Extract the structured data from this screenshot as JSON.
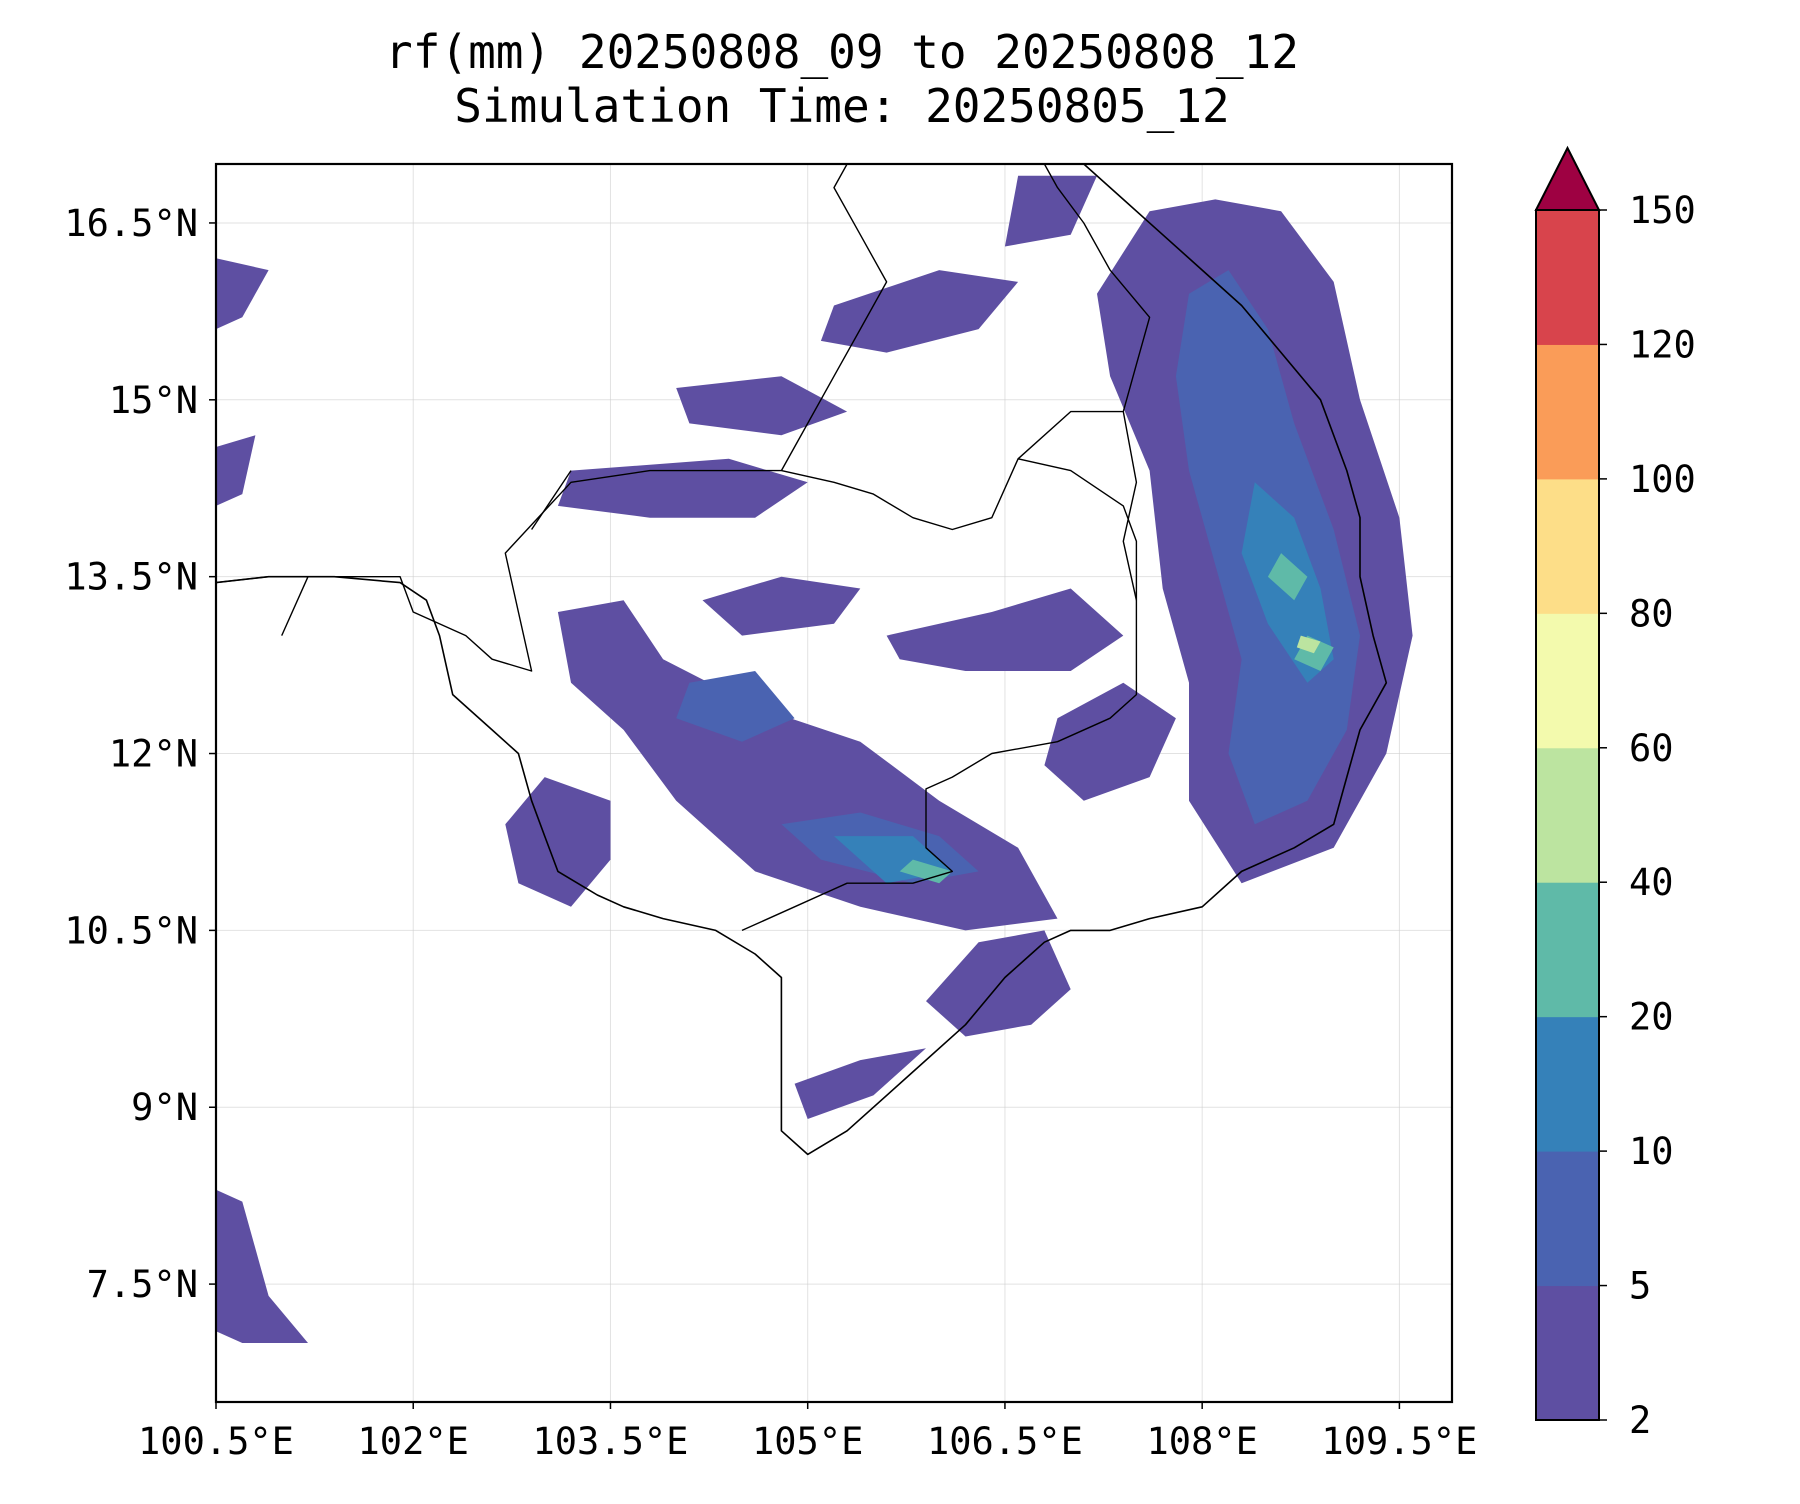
{
  "title": {
    "line1": "rf(mm) 20250808_09 to 20250808_12",
    "line2": "Simulation Time: 20250805_12"
  },
  "map": {
    "lon_range": [
      100.5,
      109.9
    ],
    "lat_range": [
      6.5,
      17.0
    ],
    "x_ticks": [
      {
        "value": 100.5,
        "label": "100.5°E"
      },
      {
        "value": 102.0,
        "label": "102°E"
      },
      {
        "value": 103.5,
        "label": "103.5°E"
      },
      {
        "value": 105.0,
        "label": "105°E"
      },
      {
        "value": 106.5,
        "label": "106.5°E"
      },
      {
        "value": 108.0,
        "label": "108°E"
      },
      {
        "value": 109.5,
        "label": "109.5°E"
      }
    ],
    "y_ticks": [
      {
        "value": 16.5,
        "label": "16.5°N"
      },
      {
        "value": 15.0,
        "label": "15°N"
      },
      {
        "value": 13.5,
        "label": "13.5°N"
      },
      {
        "value": 12.0,
        "label": "12°N"
      },
      {
        "value": 10.5,
        "label": "10.5°N"
      },
      {
        "value": 9.0,
        "label": "9°N"
      },
      {
        "value": 7.5,
        "label": "7.5°N"
      }
    ],
    "grid": true
  },
  "colorbar": {
    "levels": [
      "2",
      "5",
      "10",
      "20",
      "40",
      "60",
      "80",
      "100",
      "120",
      "150"
    ],
    "colors": [
      "#5e4fa2",
      "#4a63b1",
      "#3581b9",
      "#5fbaa8",
      "#bce4a0",
      "#f3faad",
      "#fdde88",
      "#fa9c58",
      "#d8444c"
    ],
    "extend_color": "#9e0142",
    "extend": "max"
  },
  "rain_patches": [
    {
      "level": 0,
      "points": [
        [
          108.6,
          16.6
        ],
        [
          109.0,
          16.0
        ],
        [
          109.2,
          15.0
        ],
        [
          109.5,
          14.0
        ],
        [
          109.6,
          13.0
        ],
        [
          109.4,
          12.0
        ],
        [
          109.0,
          11.2
        ],
        [
          108.3,
          10.9
        ],
        [
          107.9,
          11.6
        ],
        [
          107.9,
          12.6
        ],
        [
          107.7,
          13.4
        ],
        [
          107.6,
          14.4
        ],
        [
          107.3,
          15.2
        ],
        [
          107.2,
          15.9
        ],
        [
          107.6,
          16.6
        ],
        [
          108.1,
          16.7
        ]
      ]
    },
    {
      "level": 0,
      "points": [
        [
          103.2,
          14.4
        ],
        [
          104.4,
          14.5
        ],
        [
          105.0,
          14.3
        ],
        [
          104.6,
          14.0
        ],
        [
          103.8,
          14.0
        ],
        [
          103.1,
          14.1
        ]
      ]
    },
    {
      "level": 0,
      "points": [
        [
          103.1,
          13.2
        ],
        [
          103.6,
          13.3
        ],
        [
          103.9,
          12.8
        ],
        [
          104.6,
          12.4
        ],
        [
          105.4,
          12.1
        ],
        [
          106.0,
          11.6
        ],
        [
          106.6,
          11.2
        ],
        [
          106.9,
          10.6
        ],
        [
          106.2,
          10.5
        ],
        [
          105.4,
          10.7
        ],
        [
          104.6,
          11.0
        ],
        [
          104.0,
          11.6
        ],
        [
          103.6,
          12.2
        ],
        [
          103.2,
          12.6
        ]
      ]
    },
    {
      "level": 0,
      "points": [
        [
          103.0,
          11.8
        ],
        [
          103.5,
          11.6
        ],
        [
          103.5,
          11.1
        ],
        [
          103.2,
          10.7
        ],
        [
          102.8,
          10.9
        ],
        [
          102.7,
          11.4
        ]
      ]
    },
    {
      "level": 0,
      "points": [
        [
          105.6,
          13.0
        ],
        [
          106.4,
          13.2
        ],
        [
          107.0,
          13.4
        ],
        [
          107.4,
          13.0
        ],
        [
          107.0,
          12.7
        ],
        [
          106.2,
          12.7
        ],
        [
          105.7,
          12.8
        ]
      ]
    },
    {
      "level": 0,
      "points": [
        [
          104.2,
          13.3
        ],
        [
          104.8,
          13.5
        ],
        [
          105.4,
          13.4
        ],
        [
          105.2,
          13.1
        ],
        [
          104.5,
          13.0
        ]
      ]
    },
    {
      "level": 0,
      "points": [
        [
          106.9,
          12.3
        ],
        [
          107.4,
          12.6
        ],
        [
          107.8,
          12.3
        ],
        [
          107.6,
          11.8
        ],
        [
          107.1,
          11.6
        ],
        [
          106.8,
          11.9
        ]
      ]
    },
    {
      "level": 0,
      "points": [
        [
          106.3,
          10.4
        ],
        [
          106.8,
          10.5
        ],
        [
          107.0,
          10.0
        ],
        [
          106.7,
          9.7
        ],
        [
          106.2,
          9.6
        ],
        [
          105.9,
          9.9
        ]
      ]
    },
    {
      "level": 0,
      "points": [
        [
          104.9,
          9.2
        ],
        [
          105.4,
          9.4
        ],
        [
          105.9,
          9.5
        ],
        [
          105.5,
          9.1
        ],
        [
          105.0,
          8.9
        ]
      ]
    },
    {
      "level": 0,
      "points": [
        [
          105.2,
          15.8
        ],
        [
          106.0,
          16.1
        ],
        [
          106.6,
          16.0
        ],
        [
          106.3,
          15.6
        ],
        [
          105.6,
          15.4
        ],
        [
          105.1,
          15.5
        ]
      ]
    },
    {
      "level": 0,
      "points": [
        [
          106.6,
          16.9
        ],
        [
          107.2,
          16.9
        ],
        [
          107.0,
          16.4
        ],
        [
          106.5,
          16.3
        ]
      ]
    },
    {
      "level": 0,
      "points": [
        [
          104.0,
          15.1
        ],
        [
          104.8,
          15.2
        ],
        [
          105.3,
          14.9
        ],
        [
          104.8,
          14.7
        ],
        [
          104.1,
          14.8
        ]
      ]
    },
    {
      "level": 0,
      "points": [
        [
          100.5,
          16.2
        ],
        [
          100.9,
          16.1
        ],
        [
          100.7,
          15.7
        ],
        [
          100.5,
          15.6
        ]
      ]
    },
    {
      "level": 0,
      "points": [
        [
          100.5,
          14.6
        ],
        [
          100.8,
          14.7
        ],
        [
          100.7,
          14.2
        ],
        [
          100.5,
          14.1
        ]
      ]
    },
    {
      "level": 0,
      "points": [
        [
          100.5,
          8.3
        ],
        [
          100.7,
          8.2
        ],
        [
          100.9,
          7.4
        ],
        [
          101.2,
          7.0
        ],
        [
          100.7,
          7.0
        ],
        [
          100.5,
          7.1
        ]
      ]
    },
    {
      "level": 1,
      "points": [
        [
          108.2,
          16.1
        ],
        [
          108.5,
          15.6
        ],
        [
          108.7,
          14.8
        ],
        [
          109.0,
          13.9
        ],
        [
          109.2,
          13.0
        ],
        [
          109.1,
          12.2
        ],
        [
          108.8,
          11.6
        ],
        [
          108.4,
          11.4
        ],
        [
          108.2,
          12.0
        ],
        [
          108.3,
          12.8
        ],
        [
          108.1,
          13.6
        ],
        [
          107.9,
          14.4
        ],
        [
          107.8,
          15.2
        ],
        [
          107.9,
          15.9
        ]
      ]
    },
    {
      "level": 1,
      "points": [
        [
          104.8,
          11.4
        ],
        [
          105.4,
          11.5
        ],
        [
          106.0,
          11.3
        ],
        [
          106.3,
          11.0
        ],
        [
          105.8,
          10.9
        ],
        [
          105.1,
          11.1
        ]
      ]
    },
    {
      "level": 1,
      "points": [
        [
          104.1,
          12.6
        ],
        [
          104.6,
          12.7
        ],
        [
          104.9,
          12.3
        ],
        [
          104.5,
          12.1
        ],
        [
          104.0,
          12.3
        ]
      ]
    },
    {
      "level": 2,
      "points": [
        [
          108.4,
          14.3
        ],
        [
          108.7,
          14.0
        ],
        [
          108.9,
          13.4
        ],
        [
          109.0,
          12.8
        ],
        [
          108.8,
          12.6
        ],
        [
          108.5,
          13.1
        ],
        [
          108.3,
          13.7
        ]
      ]
    },
    {
      "level": 2,
      "points": [
        [
          105.2,
          11.3
        ],
        [
          105.8,
          11.3
        ],
        [
          106.1,
          11.0
        ],
        [
          105.6,
          10.9
        ]
      ]
    },
    {
      "level": 3,
      "points": [
        [
          108.6,
          13.7
        ],
        [
          108.8,
          13.5
        ],
        [
          108.7,
          13.3
        ],
        [
          108.5,
          13.5
        ]
      ]
    },
    {
      "level": 3,
      "points": [
        [
          108.8,
          13.0
        ],
        [
          109.0,
          12.9
        ],
        [
          108.9,
          12.7
        ],
        [
          108.7,
          12.8
        ]
      ]
    },
    {
      "level": 3,
      "points": [
        [
          105.8,
          11.1
        ],
        [
          106.1,
          11.0
        ],
        [
          106.0,
          10.9
        ],
        [
          105.7,
          11.0
        ]
      ]
    },
    {
      "level": 4,
      "points": [
        [
          108.75,
          13.0
        ],
        [
          108.9,
          12.95
        ],
        [
          108.85,
          12.85
        ],
        [
          108.72,
          12.9
        ]
      ]
    }
  ],
  "coastline": [
    [
      [
        100.5,
        13.45
      ],
      [
        100.9,
        13.5
      ],
      [
        101.4,
        13.5
      ],
      [
        101.9,
        13.45
      ],
      [
        102.1,
        13.3
      ],
      [
        102.2,
        13.0
      ],
      [
        102.3,
        12.5
      ],
      [
        102.6,
        12.2
      ],
      [
        102.8,
        12.0
      ],
      [
        102.9,
        11.6
      ],
      [
        103.0,
        11.3
      ],
      [
        103.1,
        11.0
      ],
      [
        103.4,
        10.8
      ],
      [
        103.6,
        10.7
      ],
      [
        103.9,
        10.6
      ],
      [
        104.3,
        10.5
      ],
      [
        104.6,
        10.3
      ],
      [
        104.8,
        10.1
      ],
      [
        104.8,
        9.6
      ],
      [
        104.8,
        9.2
      ],
      [
        104.8,
        8.8
      ],
      [
        105.0,
        8.6
      ],
      [
        105.3,
        8.8
      ],
      [
        105.8,
        9.3
      ],
      [
        106.2,
        9.7
      ],
      [
        106.5,
        10.1
      ],
      [
        106.7,
        10.3
      ],
      [
        106.8,
        10.4
      ],
      [
        107.0,
        10.5
      ],
      [
        107.3,
        10.5
      ],
      [
        107.6,
        10.6
      ],
      [
        108.0,
        10.7
      ],
      [
        108.3,
        11.0
      ],
      [
        108.7,
        11.2
      ],
      [
        109.0,
        11.4
      ],
      [
        109.1,
        11.8
      ],
      [
        109.2,
        12.2
      ],
      [
        109.4,
        12.6
      ],
      [
        109.3,
        13.0
      ],
      [
        109.2,
        13.5
      ],
      [
        109.2,
        14.0
      ],
      [
        109.1,
        14.4
      ],
      [
        108.9,
        15.0
      ],
      [
        108.6,
        15.4
      ],
      [
        108.3,
        15.8
      ],
      [
        108.0,
        16.1
      ],
      [
        107.7,
        16.4
      ],
      [
        107.4,
        16.7
      ],
      [
        107.1,
        17.0
      ]
    ]
  ],
  "borders": [
    [
      [
        100.5,
        13.45
      ],
      [
        100.9,
        13.5
      ],
      [
        101.5,
        13.5
      ],
      [
        101.9,
        13.5
      ],
      [
        102.0,
        13.2
      ],
      [
        102.4,
        13.0
      ],
      [
        102.6,
        12.8
      ],
      [
        102.9,
        12.7
      ],
      [
        102.8,
        13.2
      ],
      [
        102.7,
        13.7
      ],
      [
        103.2,
        14.3
      ],
      [
        103.8,
        14.4
      ],
      [
        104.3,
        14.4
      ],
      [
        104.8,
        14.4
      ],
      [
        105.2,
        14.3
      ],
      [
        105.5,
        14.2
      ],
      [
        105.8,
        14.0
      ],
      [
        106.1,
        13.9
      ],
      [
        106.4,
        14.0
      ],
      [
        106.6,
        14.5
      ],
      [
        107.0,
        14.4
      ],
      [
        107.4,
        14.1
      ],
      [
        107.5,
        13.8
      ],
      [
        107.5,
        13.3
      ],
      [
        107.5,
        12.9
      ],
      [
        107.5,
        12.5
      ],
      [
        107.3,
        12.3
      ],
      [
        106.9,
        12.1
      ],
      [
        106.4,
        12.0
      ],
      [
        106.1,
        11.8
      ],
      [
        105.9,
        11.7
      ],
      [
        105.9,
        11.2
      ],
      [
        106.1,
        11.0
      ],
      [
        105.8,
        10.9
      ],
      [
        105.3,
        10.9
      ],
      [
        104.9,
        10.7
      ],
      [
        104.5,
        10.5
      ]
    ],
    [
      [
        102.9,
        13.9
      ],
      [
        103.2,
        14.4
      ]
    ],
    [
      [
        104.8,
        14.4
      ],
      [
        105.0,
        14.8
      ],
      [
        105.2,
        15.2
      ],
      [
        105.4,
        15.6
      ],
      [
        105.6,
        16.0
      ],
      [
        105.4,
        16.4
      ],
      [
        105.2,
        16.8
      ],
      [
        105.3,
        17.0
      ]
    ],
    [
      [
        106.6,
        14.5
      ],
      [
        107.0,
        14.9
      ],
      [
        107.4,
        14.9
      ],
      [
        107.5,
        15.3
      ],
      [
        107.6,
        15.7
      ],
      [
        107.3,
        16.1
      ],
      [
        107.1,
        16.5
      ],
      [
        106.9,
        16.8
      ],
      [
        106.8,
        17.0
      ]
    ],
    [
      [
        107.5,
        13.3
      ],
      [
        107.4,
        13.8
      ],
      [
        107.5,
        14.3
      ],
      [
        107.4,
        14.9
      ]
    ],
    [
      [
        101.2,
        13.5
      ],
      [
        101.0,
        13.0
      ]
    ]
  ]
}
